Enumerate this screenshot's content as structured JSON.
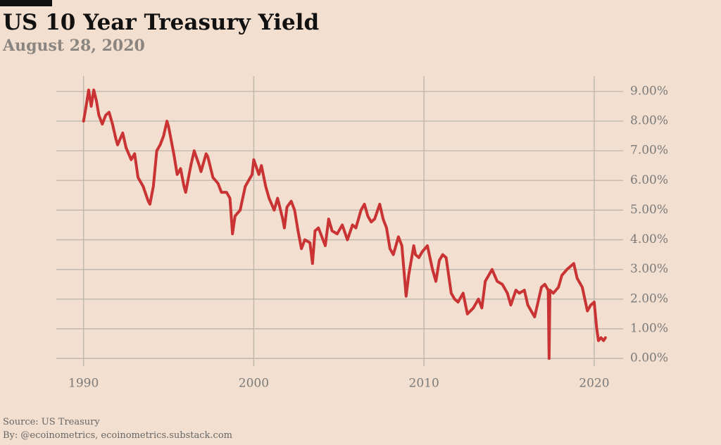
{
  "chart_data": {
    "type": "line",
    "title": "US 10 Year Treasury Yield",
    "subtitle": "August 28, 2020",
    "source": "Source: US Treasury",
    "credit": "By: @ecoinometrics, ecoinometrics.substack.com",
    "grid": true,
    "xlim": [
      1988.4,
      2021.7
    ],
    "xticks": [
      1990,
      2000,
      2010,
      2020
    ],
    "ylim": [
      -0.26,
      9.52
    ],
    "yticks": [
      {
        "value": 0,
        "label": "0.00%"
      },
      {
        "value": 1,
        "label": "1.00%"
      },
      {
        "value": 2,
        "label": "2.00%"
      },
      {
        "value": 3,
        "label": "3.00%"
      },
      {
        "value": 4,
        "label": "4.00%"
      },
      {
        "value": 5,
        "label": "5.00%"
      },
      {
        "value": 6,
        "label": "6.00%"
      },
      {
        "value": 7,
        "label": "7.00%"
      },
      {
        "value": 8,
        "label": "8.00%"
      },
      {
        "value": 9,
        "label": "9.00%"
      }
    ],
    "series": [
      {
        "name": "US 10 Year Treasury Yield",
        "color": "#c93334",
        "x": [
          1990.0,
          1990.15,
          1990.3,
          1990.45,
          1990.6,
          1990.75,
          1990.9,
          1991.1,
          1991.3,
          1991.5,
          1991.7,
          1991.9,
          1992.0,
          1992.3,
          1992.5,
          1992.8,
          1993.0,
          1993.2,
          1993.5,
          1993.8,
          1993.9,
          1994.1,
          1994.3,
          1994.5,
          1994.7,
          1994.9,
          1995.0,
          1995.3,
          1995.5,
          1995.7,
          1995.9,
          1996.0,
          1996.3,
          1996.5,
          1996.8,
          1996.9,
          1997.2,
          1997.3,
          1997.6,
          1997.9,
          1998.1,
          1998.4,
          1998.6,
          1998.75,
          1998.9,
          1999.2,
          1999.5,
          1999.7,
          1999.9,
          2000.0,
          2000.3,
          2000.45,
          2000.7,
          2000.9,
          2001.2,
          2001.4,
          2001.7,
          2001.8,
          2001.95,
          2002.2,
          2002.4,
          2002.6,
          2002.8,
          2003.0,
          2003.3,
          2003.45,
          2003.6,
          2003.8,
          2004.2,
          2004.4,
          2004.6,
          2004.9,
          2005.2,
          2005.5,
          2005.8,
          2006.0,
          2006.3,
          2006.5,
          2006.7,
          2006.9,
          2007.1,
          2007.4,
          2007.6,
          2007.8,
          2008.0,
          2008.2,
          2008.5,
          2008.7,
          2008.95,
          2009.1,
          2009.4,
          2009.5,
          2009.7,
          2009.9,
          2010.2,
          2010.5,
          2010.7,
          2010.9,
          2011.1,
          2011.3,
          2011.6,
          2011.8,
          2012.0,
          2012.3,
          2012.55,
          2012.9,
          2013.2,
          2013.4,
          2013.6,
          2013.9,
          2014.0,
          2014.3,
          2014.6,
          2014.9,
          2015.1,
          2015.4,
          2015.6,
          2015.9,
          2016.1,
          2016.5,
          2016.9,
          2017.1,
          2017.3,
          2017.35,
          2017.4,
          2017.6,
          2017.9,
          2018.1,
          2018.4,
          2018.8,
          2019.0,
          2019.3,
          2019.6,
          2019.8,
          2020.0,
          2020.15,
          2020.25,
          2020.4,
          2020.55,
          2020.66
        ],
        "values": [
          8.0,
          8.5,
          9.05,
          8.5,
          9.05,
          8.7,
          8.2,
          7.9,
          8.2,
          8.3,
          7.9,
          7.4,
          7.2,
          7.6,
          7.1,
          6.7,
          6.9,
          6.1,
          5.8,
          5.3,
          5.2,
          5.8,
          7.0,
          7.2,
          7.5,
          8.0,
          7.8,
          6.9,
          6.2,
          6.4,
          5.8,
          5.6,
          6.5,
          7.0,
          6.5,
          6.3,
          6.9,
          6.8,
          6.1,
          5.9,
          5.6,
          5.6,
          5.4,
          4.2,
          4.8,
          5.0,
          5.8,
          6.0,
          6.2,
          6.7,
          6.2,
          6.5,
          5.8,
          5.4,
          5.0,
          5.4,
          4.7,
          4.4,
          5.1,
          5.3,
          5.0,
          4.3,
          3.7,
          4.0,
          3.9,
          3.2,
          4.3,
          4.4,
          3.8,
          4.7,
          4.3,
          4.2,
          4.5,
          4.0,
          4.5,
          4.4,
          5.0,
          5.2,
          4.8,
          4.6,
          4.7,
          5.2,
          4.7,
          4.4,
          3.7,
          3.5,
          4.1,
          3.8,
          2.1,
          2.8,
          3.8,
          3.5,
          3.4,
          3.6,
          3.8,
          3.0,
          2.6,
          3.3,
          3.5,
          3.4,
          2.2,
          2.0,
          1.9,
          2.2,
          1.5,
          1.7,
          2.0,
          1.7,
          2.6,
          2.9,
          3.0,
          2.6,
          2.5,
          2.2,
          1.8,
          2.3,
          2.2,
          2.3,
          1.8,
          1.4,
          2.4,
          2.5,
          2.3,
          0.0,
          2.3,
          2.2,
          2.4,
          2.8,
          3.0,
          3.2,
          2.7,
          2.4,
          1.6,
          1.8,
          1.9,
          1.0,
          0.6,
          0.7,
          0.6,
          0.7
        ]
      }
    ]
  }
}
